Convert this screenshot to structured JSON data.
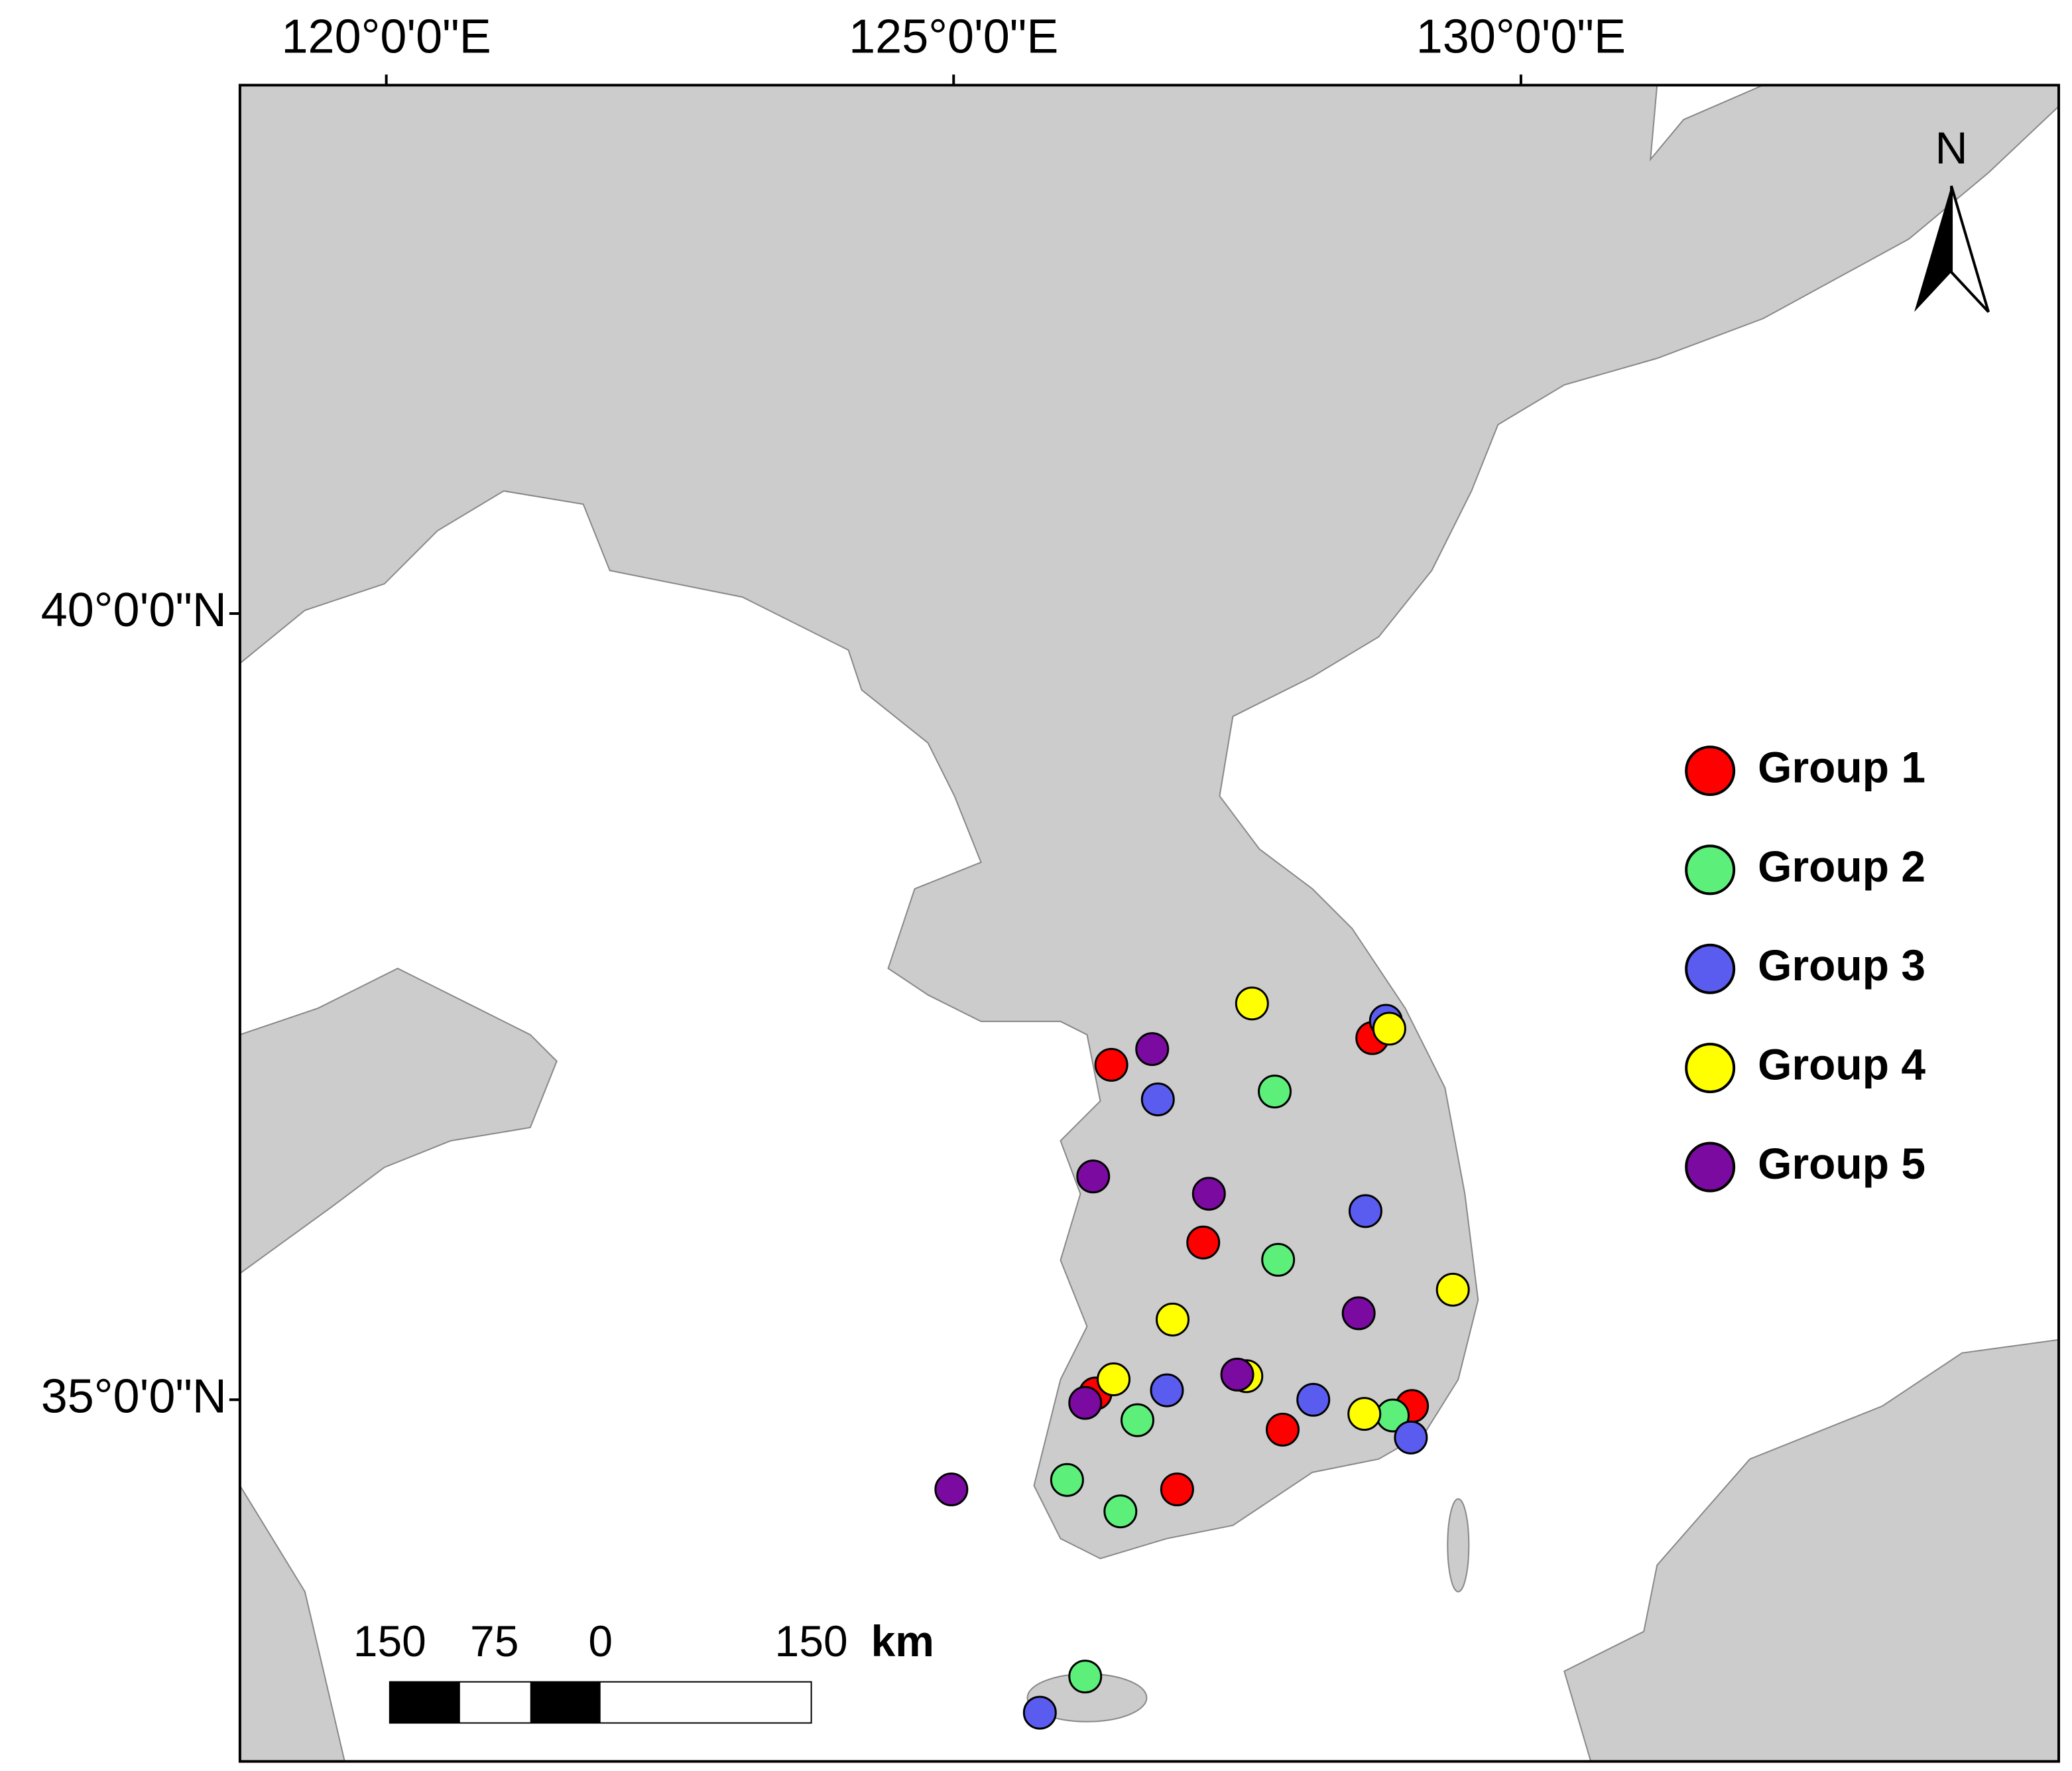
{
  "chart_data": {
    "type": "scatter",
    "xlim": [
      118.71,
      134.74
    ],
    "ylim": [
      32.7,
      43.36
    ],
    "xticks": [
      {
        "value": 120,
        "label": "120°0'0\"E"
      },
      {
        "value": 125,
        "label": "125°0'0\"E"
      },
      {
        "value": 130,
        "label": "130°0'0\"E"
      }
    ],
    "yticks": [
      {
        "value": 35,
        "label": "35°0'0\"N"
      },
      {
        "value": 40,
        "label": "40°0'0\"N"
      }
    ],
    "north_label": "N",
    "scale_bar": {
      "labels": [
        150,
        75,
        0,
        150
      ],
      "unit": "km"
    },
    "series": [
      {
        "name": "Group 1",
        "color": "#ff0000",
        "x": [
          126.39,
          128.69,
          127.2,
          126.25,
          127.9,
          129.04,
          126.97
        ],
        "values": [
          37.13,
          37.3,
          36.0,
          35.04,
          34.81,
          34.96,
          34.43
        ]
      },
      {
        "name": "Group 2",
        "color": "#5cf07a",
        "x": [
          127.83,
          127.86,
          128.87,
          126.62,
          126.0,
          126.47,
          126.16
        ],
        "values": [
          36.96,
          35.89,
          34.9,
          34.87,
          34.49,
          34.29,
          33.24
        ]
      },
      {
        "name": "Group 3",
        "color": "#5a5cf0",
        "x": [
          128.81,
          126.8,
          128.63,
          126.88,
          128.17,
          129.03,
          125.76
        ],
        "values": [
          37.41,
          36.91,
          36.2,
          35.06,
          35.0,
          34.76,
          33.01
        ]
      },
      {
        "name": "Group 4",
        "color": "#ffff00",
        "x": [
          127.63,
          128.84,
          129.4,
          126.93,
          127.58,
          126.41,
          128.62
        ],
        "values": [
          37.52,
          37.36,
          35.7,
          35.51,
          35.15,
          35.13,
          34.91
        ]
      },
      {
        "name": "Group 5",
        "color": "#7a0aa0",
        "x": [
          126.75,
          126.23,
          127.25,
          128.57,
          127.5,
          126.16,
          124.98
        ],
        "values": [
          37.23,
          36.42,
          36.31,
          35.55,
          35.16,
          34.98,
          34.43
        ]
      }
    ]
  }
}
